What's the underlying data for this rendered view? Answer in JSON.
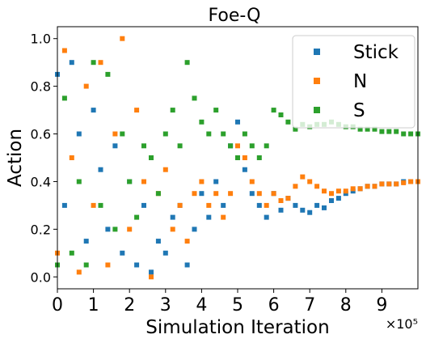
{
  "chart_data": {
    "type": "scatter",
    "title": "Foe-Q",
    "xlabel": "Simulation Iteration",
    "ylabel": "Action",
    "x_offset_label": "×10⁵",
    "xlim": [
      0,
      1000000
    ],
    "ylim": [
      -0.05,
      1.05
    ],
    "x_ticks": [
      0,
      100000,
      200000,
      300000,
      400000,
      500000,
      600000,
      700000,
      800000,
      900000
    ],
    "x_tick_labels": [
      "0",
      "1",
      "2",
      "3",
      "4",
      "5",
      "6",
      "7",
      "8",
      "9"
    ],
    "y_ticks": [
      0.0,
      0.2,
      0.4,
      0.6,
      0.8,
      1.0
    ],
    "y_tick_labels": [
      "0.0",
      "0.2",
      "0.4",
      "0.6",
      "0.8",
      "1.0"
    ],
    "grid": false,
    "legend_position": "top-right",
    "marker": "square",
    "series": [
      {
        "name": "Stick",
        "color": "#1f77b4",
        "x": [
          0,
          20000,
          40000,
          60000,
          80000,
          100000,
          120000,
          140000,
          160000,
          180000,
          200000,
          220000,
          240000,
          260000,
          280000,
          300000,
          320000,
          340000,
          360000,
          380000,
          400000,
          420000,
          440000,
          460000,
          480000,
          500000,
          520000,
          540000,
          560000,
          580000,
          600000,
          620000,
          640000,
          660000,
          680000,
          700000,
          720000,
          740000,
          760000,
          780000,
          800000,
          820000,
          840000,
          860000,
          880000,
          900000,
          920000,
          940000,
          960000,
          980000,
          1000000
        ],
        "y": [
          0.85,
          0.3,
          0.9,
          0.6,
          0.15,
          0.7,
          0.45,
          0.2,
          0.55,
          0.1,
          0.4,
          0.05,
          0.3,
          0.02,
          0.15,
          0.1,
          0.25,
          0.3,
          0.05,
          0.2,
          0.35,
          0.25,
          0.4,
          0.3,
          0.55,
          0.65,
          0.45,
          0.35,
          0.3,
          0.25,
          0.35,
          0.28,
          0.33,
          0.3,
          0.28,
          0.27,
          0.3,
          0.29,
          0.32,
          0.33,
          0.35,
          0.36,
          0.37,
          0.38,
          0.38,
          0.39,
          0.39,
          0.39,
          0.4,
          0.4,
          0.4
        ]
      },
      {
        "name": "N",
        "color": "#ff7f0e",
        "x": [
          0,
          20000,
          40000,
          60000,
          80000,
          100000,
          120000,
          140000,
          160000,
          180000,
          200000,
          220000,
          240000,
          260000,
          280000,
          300000,
          320000,
          340000,
          360000,
          380000,
          400000,
          420000,
          440000,
          460000,
          480000,
          500000,
          520000,
          540000,
          560000,
          580000,
          600000,
          620000,
          640000,
          660000,
          680000,
          700000,
          720000,
          740000,
          760000,
          780000,
          800000,
          820000,
          840000,
          860000,
          880000,
          900000,
          920000,
          940000,
          960000,
          980000,
          1000000
        ],
        "y": [
          0.1,
          0.95,
          0.5,
          0.02,
          0.8,
          0.3,
          0.9,
          0.05,
          0.6,
          1.0,
          0.2,
          0.7,
          0.4,
          0.0,
          0.35,
          0.45,
          0.2,
          0.3,
          0.15,
          0.35,
          0.4,
          0.3,
          0.35,
          0.25,
          0.35,
          0.55,
          0.5,
          0.4,
          0.35,
          0.3,
          0.35,
          0.32,
          0.33,
          0.38,
          0.42,
          0.4,
          0.38,
          0.36,
          0.35,
          0.36,
          0.36,
          0.37,
          0.37,
          0.38,
          0.38,
          0.39,
          0.39,
          0.39,
          0.395,
          0.4,
          0.4
        ]
      },
      {
        "name": "S",
        "color": "#2ca02c",
        "x": [
          0,
          20000,
          40000,
          60000,
          80000,
          100000,
          120000,
          140000,
          160000,
          180000,
          200000,
          220000,
          240000,
          260000,
          280000,
          300000,
          320000,
          340000,
          360000,
          380000,
          400000,
          420000,
          440000,
          460000,
          480000,
          500000,
          520000,
          540000,
          560000,
          580000,
          600000,
          620000,
          640000,
          660000,
          680000,
          700000,
          720000,
          740000,
          760000,
          780000,
          800000,
          820000,
          840000,
          860000,
          880000,
          900000,
          920000,
          940000,
          960000,
          980000,
          1000000
        ],
        "y": [
          0.05,
          0.75,
          0.1,
          0.4,
          0.05,
          0.9,
          0.3,
          0.85,
          0.2,
          0.6,
          0.4,
          0.25,
          0.55,
          0.5,
          0.35,
          0.6,
          0.7,
          0.55,
          0.9,
          0.75,
          0.65,
          0.6,
          0.7,
          0.6,
          0.55,
          0.5,
          0.6,
          0.55,
          0.5,
          0.55,
          0.7,
          0.68,
          0.65,
          0.62,
          0.64,
          0.63,
          0.64,
          0.64,
          0.65,
          0.64,
          0.63,
          0.63,
          0.62,
          0.62,
          0.62,
          0.61,
          0.61,
          0.61,
          0.6,
          0.6,
          0.6
        ]
      }
    ]
  }
}
